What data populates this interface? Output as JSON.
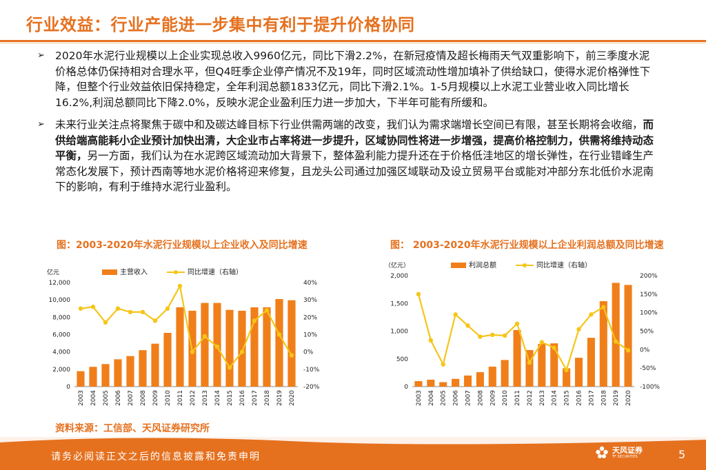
{
  "header": {
    "title": "行业效益：行业产能进一步集中有利于提升价格协同"
  },
  "bullets": [
    {
      "marker": "➢",
      "text": "2020年水泥行业规模以上企业实现总收入9960亿元，同比下滑2.2%，在新冠疫情及超长梅雨天气双重影响下，前三季度水泥价格总体仍保持相对合理水平，但Q4旺季企业停产情况不及19年，同时区域流动性增加填补了供给缺口，使得水泥价格弹性下降，但整个行业效益依旧保持稳定，全年利润总额1833亿元，同比下滑2.1%。1-5月规模以上水泥工业营业收入同比增长16.2%,利润总额同比下降2.0%，反映水泥企业盈利压力进一步加大，下半年可能有所缓和。"
    },
    {
      "marker": "➢",
      "text_a": "未来行业关注点将聚焦于碳中和及碳达峰目标下行业供需两端的改变，我们认为需求端增长空间已有限，甚至长期将会收缩，",
      "text_bold": "而供给端高能耗小企业预计加快出清，大企业市占率将进一步提升，区域协同性将进一步增强，提高价格控制力，供需将维持动态平衡，",
      "text_b": "另一方面，我们认为在水泥跨区域流动加大背景下，整体盈利能力提升还在于价格低洼地区的增长弹性，在行业错峰生产常态化发展下，预计西南等地水泥价格将迎来修复，且龙头公司通过加强区域联动及设立贸易平台或能对冲部分东北低价水泥南下的影响，有利于维持水泥行业盈利。"
    }
  ],
  "source": "资料来源：工信部、天风证券研究所",
  "footer": {
    "disclaimer": "请务必阅读正文之后的信息披露和免责申明",
    "logo_name": "天风证券",
    "logo_sub": "TF SECURITIES",
    "page": "5"
  },
  "colors": {
    "accent": "#e5711f",
    "bar": "#f07f1a",
    "line": "#f5c518"
  },
  "chart_data": [
    {
      "type": "bar+line",
      "title": "图：2003-2020年水泥行业规模以上企业收入及同比增速",
      "left_unit": "亿元",
      "categories": [
        "2003",
        "2004",
        "2005",
        "2006",
        "2007",
        "2008",
        "2009",
        "2010",
        "2011",
        "2012",
        "2013",
        "2014",
        "2015",
        "2016",
        "2017",
        "2018",
        "2019",
        "2020"
      ],
      "series": [
        {
          "name": "主营收入",
          "axis": "left",
          "kind": "bar",
          "values": [
            1780,
            2280,
            2600,
            3150,
            3520,
            4200,
            4950,
            6200,
            9150,
            8750,
            9650,
            9650,
            8850,
            8750,
            9150,
            9150,
            10100,
            9960
          ]
        },
        {
          "name": "同比增速（右轴）",
          "axis": "right",
          "kind": "line",
          "values": [
            25,
            26,
            17,
            25,
            23,
            23,
            18,
            25,
            38,
            0,
            9,
            3,
            -9,
            0,
            18,
            24,
            10,
            -2
          ]
        }
      ],
      "left_axis": {
        "min": 0,
        "max": 12000,
        "ticks": [
          "0",
          "2,000",
          "4,000",
          "6,000",
          "8,000",
          "10,000",
          "12,000"
        ]
      },
      "right_axis": {
        "min": -20,
        "max": 40,
        "ticks": [
          "-20%",
          "-10%",
          "0%",
          "10%",
          "20%",
          "30%",
          "40%"
        ]
      }
    },
    {
      "type": "bar+line",
      "title": "图：  2003-2020年水泥行业规模以上企业利润总额及同比增速",
      "left_unit": "（亿元）",
      "categories": [
        "2003",
        "2004",
        "2005",
        "2006",
        "2007",
        "2008",
        "2009",
        "2010",
        "2011",
        "2012",
        "2013",
        "2014",
        "2015",
        "2016",
        "2017",
        "2018",
        "2019",
        "2020"
      ],
      "series": [
        {
          "name": "利润总额",
          "axis": "left",
          "kind": "bar",
          "values": [
            100,
            125,
            80,
            140,
            200,
            260,
            360,
            480,
            1020,
            660,
            770,
            780,
            330,
            520,
            880,
            1540,
            1870,
            1833
          ]
        },
        {
          "name": "同比增速（右轴）",
          "axis": "right",
          "kind": "line",
          "values": [
            150,
            25,
            -40,
            95,
            65,
            35,
            40,
            38,
            70,
            -35,
            20,
            5,
            -55,
            55,
            95,
            115,
            22,
            -2
          ]
        }
      ],
      "left_axis": {
        "min": 0,
        "max": 2000,
        "ticks": [
          "0",
          "500",
          "1,000",
          "1,500",
          "2,000"
        ]
      },
      "right_axis": {
        "min": -100,
        "max": 200,
        "ticks": [
          "-100%",
          "-50%",
          "0%",
          "50%",
          "100%",
          "150%",
          "200%"
        ]
      }
    }
  ]
}
